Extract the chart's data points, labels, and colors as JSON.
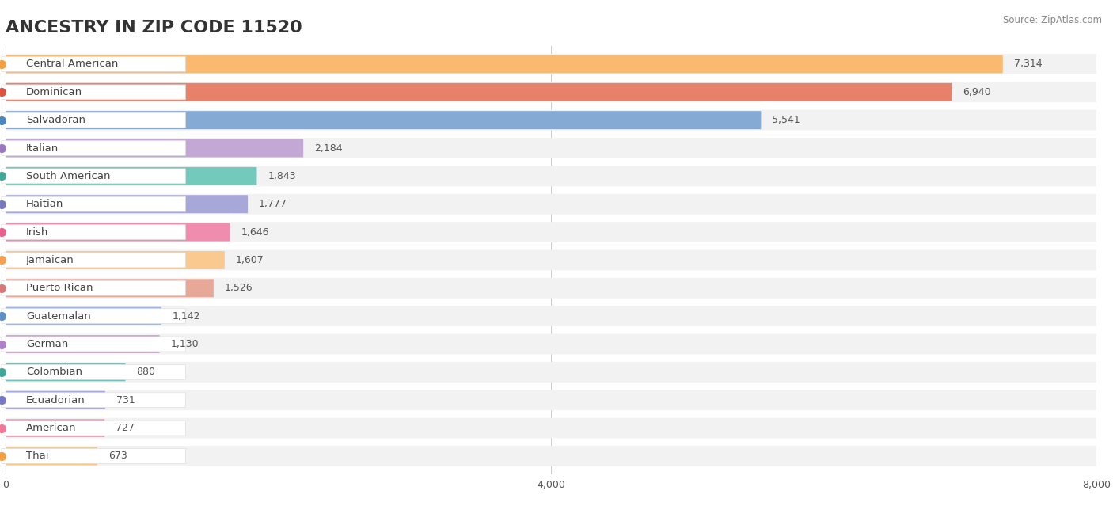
{
  "title": "ANCESTRY IN ZIP CODE 11520",
  "source": "Source: ZipAtlas.com",
  "categories": [
    "Central American",
    "Dominican",
    "Salvadoran",
    "Italian",
    "South American",
    "Haitian",
    "Irish",
    "Jamaican",
    "Puerto Rican",
    "Guatemalan",
    "German",
    "Colombian",
    "Ecuadorian",
    "American",
    "Thai"
  ],
  "values": [
    7314,
    6940,
    5541,
    2184,
    1843,
    1777,
    1646,
    1607,
    1526,
    1142,
    1130,
    880,
    731,
    727,
    673
  ],
  "bar_colors": [
    "#F9B96E",
    "#E8816A",
    "#85AAD4",
    "#C3A8D5",
    "#72C9BC",
    "#A8A8D8",
    "#F08CAE",
    "#F9C990",
    "#E8A898",
    "#9DB8E0",
    "#D4A8D8",
    "#70C4BC",
    "#A8A8E0",
    "#F4A0BC",
    "#F9C880"
  ],
  "dot_colors": [
    "#F5A040",
    "#D95540",
    "#4A86C0",
    "#9A78C0",
    "#40A898",
    "#7878C0",
    "#E86090",
    "#F5A050",
    "#D87878",
    "#6090C8",
    "#B080C8",
    "#40A898",
    "#7878C8",
    "#F07898",
    "#F5A040"
  ],
  "xlim": [
    0,
    8000
  ],
  "xticks": [
    0,
    4000,
    8000
  ],
  "background_color": "#ffffff",
  "row_bg_color": "#f2f2f2",
  "title_fontsize": 16,
  "label_fontsize": 9.5,
  "value_fontsize": 9
}
